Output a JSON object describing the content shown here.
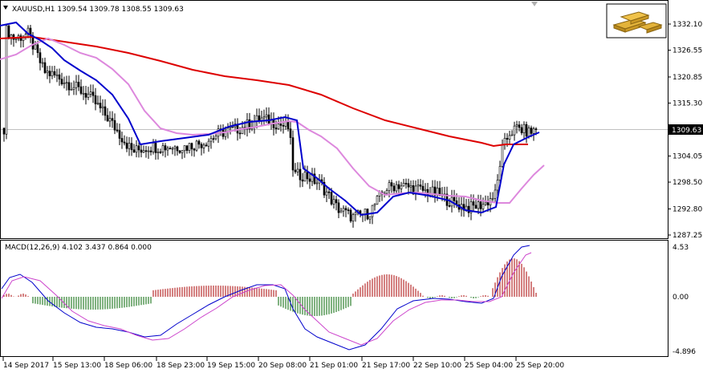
{
  "chart": {
    "symbol_line": "XAUUSD,H1  1309.54 1309.78 1308.55 1309.63",
    "current_price": "1309.63",
    "price_axis": [
      "1332.10",
      "1326.55",
      "1320.85",
      "1315.30",
      "1304.05",
      "1298.50",
      "1292.80",
      "1287.25"
    ],
    "price_axis_values": [
      1332.1,
      1326.55,
      1320.85,
      1315.3,
      1304.05,
      1298.5,
      1292.8,
      1287.25
    ],
    "time_axis": [
      "14 Sep 2017",
      "15 Sep 13:00",
      "18 Sep 06:00",
      "18 Sep 23:00",
      "19 Sep 15:00",
      "20 Sep 08:00",
      "21 Sep 01:00",
      "21 Sep 17:00",
      "22 Sep 10:00",
      "25 Sep 04:00",
      "25 Sep 20:00"
    ],
    "colors": {
      "bull_candle": "#ffffff",
      "bear_candle": "#000000",
      "ma_fast": "#0000cc",
      "ma_medium": "#dd88dd",
      "ma_slow": "#dd0000",
      "macd_main": "#0000cc",
      "macd_signal": "#cc44cc",
      "hist_positive": "#aa0000",
      "hist_negative": "#006600",
      "current_price_line": "#c0c0c0"
    },
    "logo_icon": "gold-bars-icon"
  },
  "macd": {
    "label": "MACD(12,26,9) 4.102 3.437 0.864 0.000",
    "axis": [
      "4.53",
      "0.00",
      "-4.896"
    ],
    "axis_values": [
      4.53,
      0.0,
      -4.896
    ]
  }
}
